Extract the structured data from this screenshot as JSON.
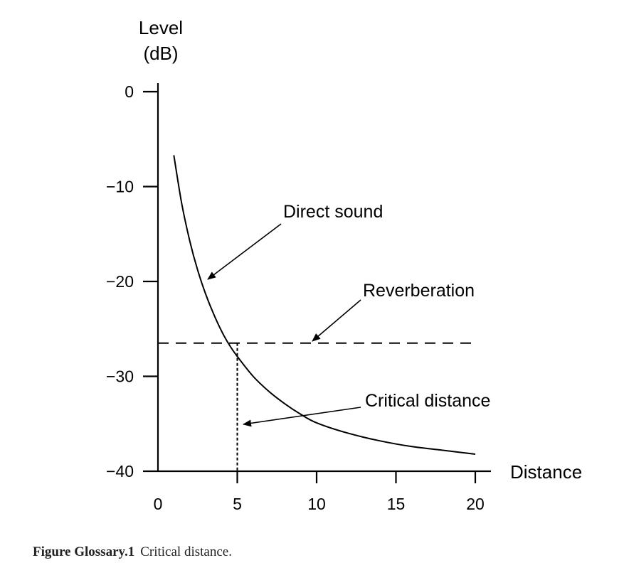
{
  "chart_data": {
    "type": "line",
    "ylabel_line1": "Level",
    "ylabel_line2": "(dB)",
    "xlabel": "Distance",
    "xlim": [
      0,
      20
    ],
    "ylim": [
      -40,
      0
    ],
    "x_ticks": [
      0,
      5,
      10,
      15,
      20
    ],
    "y_ticks": [
      0,
      -10,
      -20,
      -30,
      -40
    ],
    "x_tick_labels": [
      "0",
      "5",
      "10",
      "15",
      "20"
    ],
    "y_tick_labels": [
      "0",
      "−10",
      "−20",
      "−30",
      "−40"
    ],
    "grid": false,
    "series": [
      {
        "name": "Direct sound",
        "style": "solid",
        "x": [
          1,
          1.5,
          2,
          2.5,
          3,
          3.5,
          4,
          4.5,
          5,
          6,
          7,
          8,
          9,
          10,
          12,
          14,
          16,
          18,
          20
        ],
        "y": [
          -6.7,
          -11.8,
          -15.7,
          -18.8,
          -21.3,
          -23.4,
          -25.2,
          -26.7,
          -27.9,
          -30.0,
          -31.6,
          -32.9,
          -34.0,
          -34.9,
          -36.0,
          -36.8,
          -37.4,
          -37.8,
          -38.2
        ]
      },
      {
        "name": "Reverberation",
        "style": "dashed",
        "x": [
          0,
          20
        ],
        "y": [
          -26.5,
          -26.5
        ]
      }
    ],
    "critical_distance_x": 5,
    "annotations": [
      {
        "text": "Direct sound",
        "arrow_to": [
          3,
          -20.0
        ]
      },
      {
        "text": "Reverberation",
        "arrow_to": [
          9.8,
          -26.5
        ]
      },
      {
        "text": "Critical distance",
        "arrow_to": [
          5.3,
          -34.0
        ]
      }
    ],
    "colors": {
      "ink": "#000000",
      "caption": "#222222"
    }
  },
  "caption": {
    "label": "Figure Glossary.1",
    "text": "Critical distance."
  }
}
